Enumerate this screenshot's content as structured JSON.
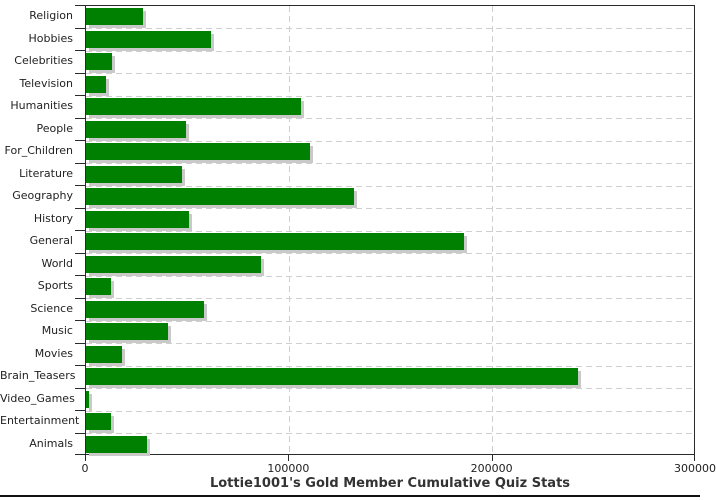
{
  "chart_data": {
    "type": "bar",
    "orientation": "horizontal",
    "title": "Lottie1001's Gold Member Cumulative Quiz Stats",
    "xlabel": "",
    "ylabel": "",
    "categories": [
      "Religion",
      "Hobbies",
      "Celebrities",
      "Television",
      "Humanities",
      "People",
      "For_Children",
      "Literature",
      "Geography",
      "History",
      "General",
      "World",
      "Sports",
      "Science",
      "Music",
      "Movies",
      "Brain_Teasers",
      "Video_Games",
      "Entertainment",
      "Animals"
    ],
    "values": [
      28000,
      61500,
      13000,
      10000,
      105500,
      49000,
      110000,
      47000,
      132000,
      50500,
      186000,
      86000,
      12500,
      58000,
      40500,
      17500,
      242000,
      1300,
      12500,
      30000
    ],
    "xlim": [
      0,
      300000
    ],
    "x_ticks": [
      0,
      100000,
      200000,
      300000
    ],
    "x_tick_labels": [
      "0",
      "100000",
      "200000",
      "300000"
    ],
    "grid": "dashed, horizontal at every category boundary and vertical at each x tick",
    "legend_position": "none",
    "colors": {
      "bar": "#008000",
      "bar_shadow": "#c9c9c9",
      "grid": "#cfcfcf",
      "axis": "#2a2a2a",
      "text": "#222222",
      "title": "#333333",
      "background": "#ffffff"
    }
  }
}
